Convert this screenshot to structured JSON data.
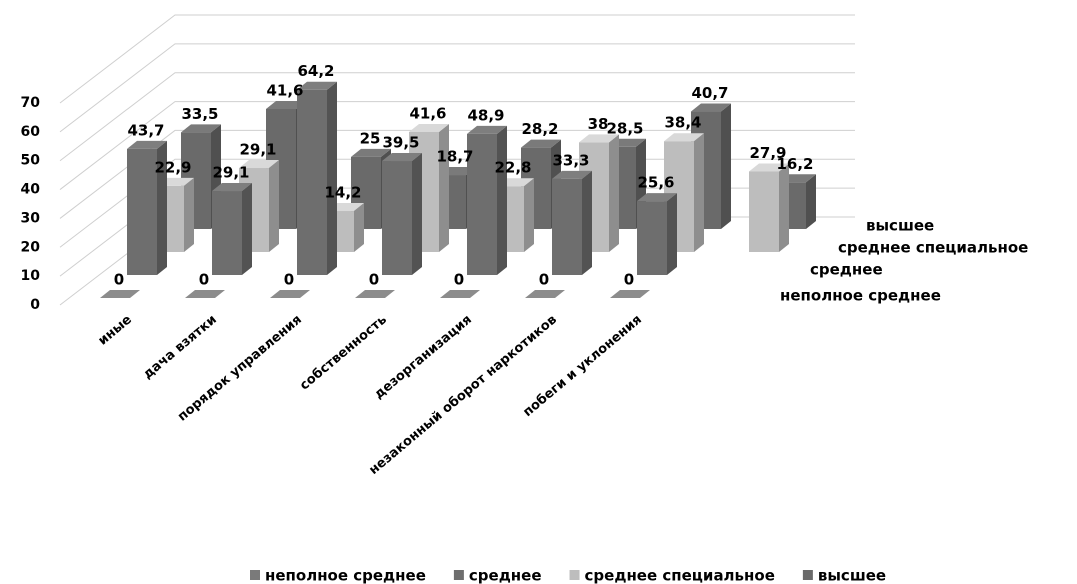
{
  "chart_data": {
    "type": "bar3d",
    "categories": [
      "иные",
      "дача взятки",
      "порядок управления",
      "собственность",
      "дезорганизация",
      "незаконный оборот наркотиков",
      "побеги и уклонения",
      null
    ],
    "series": [
      {
        "name": "неполное среднее",
        "color": "#7a7a7a",
        "values": [
          0,
          0,
          0,
          0,
          0,
          0,
          0,
          null
        ],
        "value_labels": [
          "0",
          "0",
          "0",
          "0",
          "0",
          "0",
          "0",
          null
        ]
      },
      {
        "name": "среднее",
        "color": "#6e6e6e",
        "values": [
          43.7,
          29.1,
          64.2,
          39.5,
          48.9,
          33.3,
          25.6,
          null
        ],
        "value_labels": [
          "43,7",
          "29,1",
          "64,2",
          "39,5",
          "48,9",
          "33,3",
          "25,6",
          null
        ]
      },
      {
        "name": "среднее специальное",
        "color": "#bdbdbd",
        "values": [
          22.9,
          29.1,
          14.2,
          41.6,
          22.8,
          38,
          38.4,
          27.9
        ],
        "value_labels": [
          "22,9",
          "29,1",
          "14,2",
          "41,6",
          "22,8",
          "38",
          "38,4",
          "27,9"
        ]
      },
      {
        "name": "высшее",
        "color": "#6a6a6a",
        "values": [
          33.5,
          41.6,
          25,
          18.7,
          28.2,
          28.5,
          40.7,
          16.2
        ],
        "value_labels": [
          "33,5",
          "41,6",
          "25",
          "18,7",
          "28,2",
          "28,5",
          "40,7",
          "16,2"
        ]
      }
    ],
    "ylim": [
      0,
      70
    ],
    "yticks": [
      0,
      10,
      20,
      30,
      40,
      50,
      60,
      70
    ],
    "grid": true,
    "legend": "bottom"
  }
}
